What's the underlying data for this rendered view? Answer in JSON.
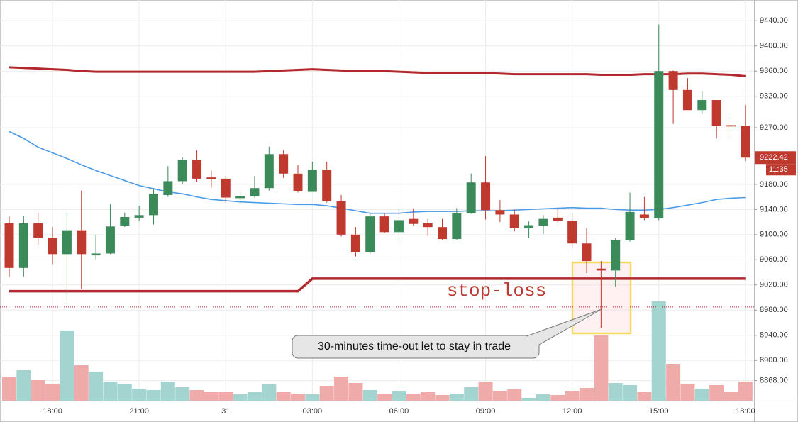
{
  "chart_data": {
    "type": "candlestick",
    "categories": [
      null,
      null,
      null,
      "18:00",
      null,
      null,
      null,
      null,
      null,
      "21:00",
      null,
      null,
      null,
      null,
      null,
      "31",
      null,
      null,
      null,
      null,
      null,
      "03:00",
      null,
      null,
      null,
      null,
      null,
      "06:00",
      null,
      null,
      null,
      null,
      null,
      "09:00",
      null,
      null,
      null,
      null,
      null,
      "12:00",
      null,
      null,
      null,
      null,
      null,
      "15:00",
      null,
      null,
      null,
      null,
      null,
      "18:00"
    ],
    "open": [
      9118,
      9047,
      9118,
      9095,
      9069,
      9107,
      9067,
      9070,
      9114,
      9127,
      9131,
      9163,
      9185,
      9219,
      9191,
      9189,
      9158,
      9161,
      9174,
      9228,
      9197,
      9168,
      9203,
      9153,
      9100,
      9072,
      9129,
      9104,
      9125,
      9118,
      9112,
      9093,
      9134,
      9183,
      9139,
      9132,
      9110,
      9114,
      9127,
      9122,
      9086,
      9046,
      9043,
      9091,
      9132,
      9126,
      9360,
      9330,
      9298,
      9314,
      9274,
      9273
    ],
    "high": [
      9129,
      9130,
      9134,
      9112,
      9134,
      9170,
      9100,
      9148,
      9135,
      9146,
      9174,
      9209,
      9223,
      9234,
      9202,
      9193,
      9168,
      9193,
      9240,
      9234,
      9211,
      9216,
      9216,
      9163,
      9112,
      9134,
      9134,
      9140,
      9142,
      9125,
      9125,
      9142,
      9197,
      9225,
      9155,
      9140,
      9121,
      9131,
      9140,
      9134,
      9110,
      9058,
      9094,
      9167,
      9160,
      9434,
      9361,
      9349,
      9328,
      9314,
      9287,
      9306
    ],
    "low": [
      9033,
      9033,
      9084,
      9053,
      8994,
      9013,
      9061,
      9069,
      9112,
      9121,
      9116,
      9160,
      9180,
      9184,
      9175,
      9151,
      9149,
      9159,
      9170,
      9190,
      9167,
      9168,
      9151,
      9097,
      9065,
      9069,
      9103,
      9089,
      9114,
      9098,
      9092,
      9092,
      9133,
      9124,
      9120,
      9105,
      9094,
      9101,
      9119,
      9078,
      9039,
      8952,
      9017,
      9089,
      9123,
      9123,
      9276,
      9298,
      9292,
      9253,
      9256,
      9217
    ],
    "close": [
      9047,
      9118,
      9095,
      9069,
      9107,
      9069,
      9070,
      9113,
      9128,
      9131,
      9165,
      9185,
      9219,
      9189,
      9188,
      9159,
      9161,
      9174,
      9228,
      9197,
      9169,
      9203,
      9153,
      9100,
      9072,
      9129,
      9104,
      9123,
      9117,
      9112,
      9093,
      9134,
      9183,
      9139,
      9132,
      9110,
      9115,
      9125,
      9122,
      9086,
      9058,
      9043,
      9091,
      9136,
      9126,
      9360,
      9330,
      9298,
      9314,
      9273,
      9272,
      9222.42
    ],
    "volume": [
      33,
      43,
      29,
      24,
      99,
      50,
      41,
      27,
      24,
      17,
      15,
      27,
      19,
      15,
      12,
      12,
      9,
      12,
      23,
      12,
      10,
      9,
      21,
      34,
      25,
      15,
      9,
      14,
      9,
      12,
      8,
      10,
      19,
      27,
      14,
      16,
      4,
      9,
      8,
      14,
      18,
      92,
      25,
      22,
      12,
      140,
      52,
      24,
      17,
      22,
      13,
      27
    ],
    "up_color": "#3b8a5a",
    "down_color": "#c0392f",
    "volume_up_color": "#a3d4cf",
    "volume_down_color": "#efaaaa",
    "lines": [
      {
        "color": "#b3282d",
        "values": [
          9366,
          9365,
          9364,
          9363,
          9362,
          9360,
          9359,
          9359,
          9359,
          9359,
          9359,
          9359,
          9359,
          9359,
          9359,
          9359,
          9359,
          9359,
          9360,
          9361,
          9362,
          9363,
          9362,
          9361,
          9360,
          9360,
          9360,
          9359,
          9358,
          9357,
          9357,
          9357,
          9357,
          9357,
          9356,
          9355,
          9355,
          9355,
          9355,
          9355,
          9355,
          9354,
          9354,
          9354,
          9355,
          9355,
          9355,
          9356,
          9356,
          9355,
          9354,
          9352
        ]
      },
      {
        "color": "#4a9be8",
        "values": [
          9264,
          9253,
          9239,
          9230,
          9221,
          9211,
          9202,
          9194,
          9186,
          9178,
          9173,
          9168,
          9165,
          9160,
          9156,
          9154,
          9152,
          9151,
          9150,
          9149,
          9148,
          9148,
          9146,
          9142,
          9138,
          9134,
          9134,
          9134,
          9136,
          9137,
          9137,
          9137,
          9138,
          9138,
          9138,
          9139,
          9140,
          9141,
          9142,
          9143,
          9142,
          9142,
          9140,
          9139,
          9139,
          9140,
          9143,
          9147,
          9151,
          9156,
          9158,
          9159
        ]
      },
      {
        "color": "#b3282d",
        "values": [
          9010,
          9010,
          9010,
          9010,
          9010,
          9010,
          9010,
          9010,
          9010,
          9010,
          9010,
          9010,
          9010,
          9010,
          9010,
          9010,
          9010,
          9010,
          9010,
          9010,
          9010,
          9030,
          9030,
          9030,
          9030,
          9030,
          9030,
          9030,
          9030,
          9030,
          9030,
          9030,
          9030,
          9030,
          9030,
          9030,
          9030,
          9030,
          9030,
          9030,
          9030,
          9030,
          9030,
          9030,
          9030,
          9030,
          9030,
          9030,
          9030,
          9030,
          9030,
          9030
        ]
      }
    ],
    "price_line": 8985,
    "last_price": 9222.42,
    "countdown": "11:35",
    "ylim": [
      8836,
      9473
    ],
    "yticks": [
      {
        "value": 9440,
        "label": "9440.00"
      },
      {
        "value": 9400,
        "label": "9400.00"
      },
      {
        "value": 9360,
        "label": "9360.00"
      },
      {
        "value": 9320,
        "label": "9320.00"
      },
      {
        "value": 9270,
        "label": "9270.00"
      },
      {
        "value": 9180,
        "label": "9180.00"
      },
      {
        "value": 9140,
        "label": "9140.00"
      },
      {
        "value": 9100,
        "label": "9100.00"
      },
      {
        "value": 9060,
        "label": "9060.00"
      },
      {
        "value": 9020,
        "label": "9020.00"
      },
      {
        "value": 8980,
        "label": "8980.00"
      },
      {
        "value": 8940,
        "label": "8940.00"
      },
      {
        "value": 8900,
        "label": "8900.00"
      },
      {
        "value": 8868,
        "label": "8868.00"
      }
    ],
    "grid": true,
    "annotations": [
      "stop-loss",
      "30-minutes time-out let to stay in trade"
    ]
  }
}
